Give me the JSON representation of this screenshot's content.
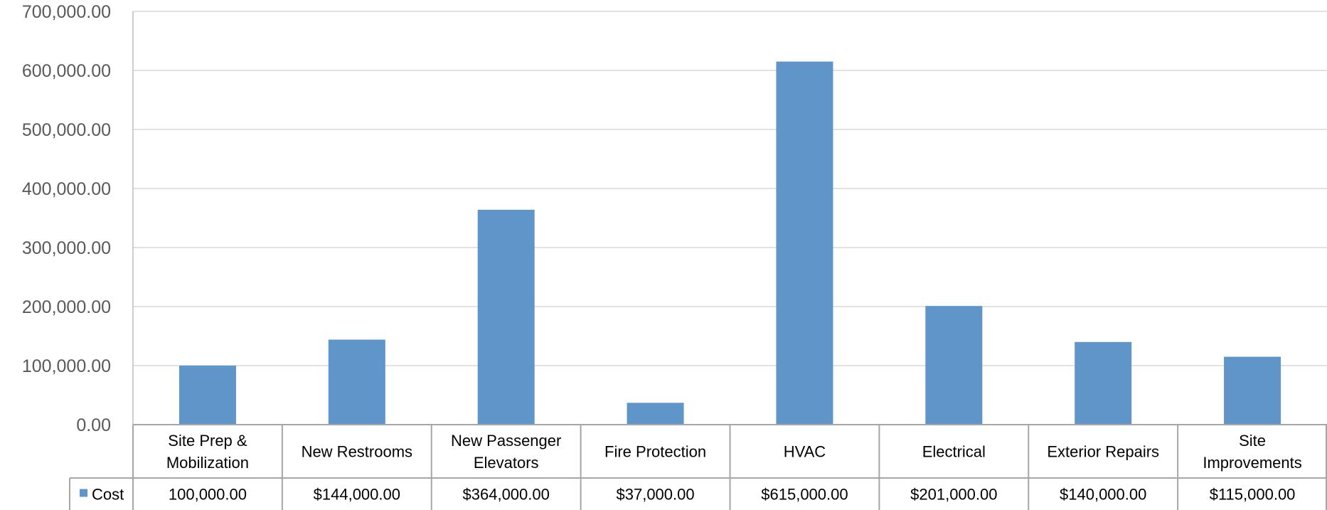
{
  "chart_data": {
    "type": "bar",
    "title": "",
    "xlabel": "",
    "ylabel": "",
    "ylim": [
      0,
      700000
    ],
    "y_ticks": [
      0,
      100000,
      200000,
      300000,
      400000,
      500000,
      600000,
      700000
    ],
    "y_tick_labels": [
      "0.00",
      "100,000.00",
      "200,000.00",
      "300,000.00",
      "400,000.00",
      "500,000.00",
      "600,000.00",
      "700,000.00"
    ],
    "grid": true,
    "legend_placement": "data-table",
    "categories": [
      [
        "Site Prep &",
        "Mobilization"
      ],
      [
        "New Restrooms"
      ],
      [
        "New Passenger",
        "Elevators"
      ],
      [
        "Fire Protection"
      ],
      [
        "HVAC"
      ],
      [
        "Electrical"
      ],
      [
        "Exterior Repairs"
      ],
      [
        "Site",
        "Improvements"
      ]
    ],
    "series": [
      {
        "name": "Cost",
        "color": "#6095C9",
        "values": [
          100000,
          144000,
          364000,
          37000,
          615000,
          201000,
          140000,
          115000
        ],
        "table_values": [
          "100,000.00",
          "$144,000.00",
          "$364,000.00",
          "$37,000.00",
          "$615,000.00",
          "$201,000.00",
          "$140,000.00",
          "$115,000.00"
        ]
      }
    ]
  }
}
